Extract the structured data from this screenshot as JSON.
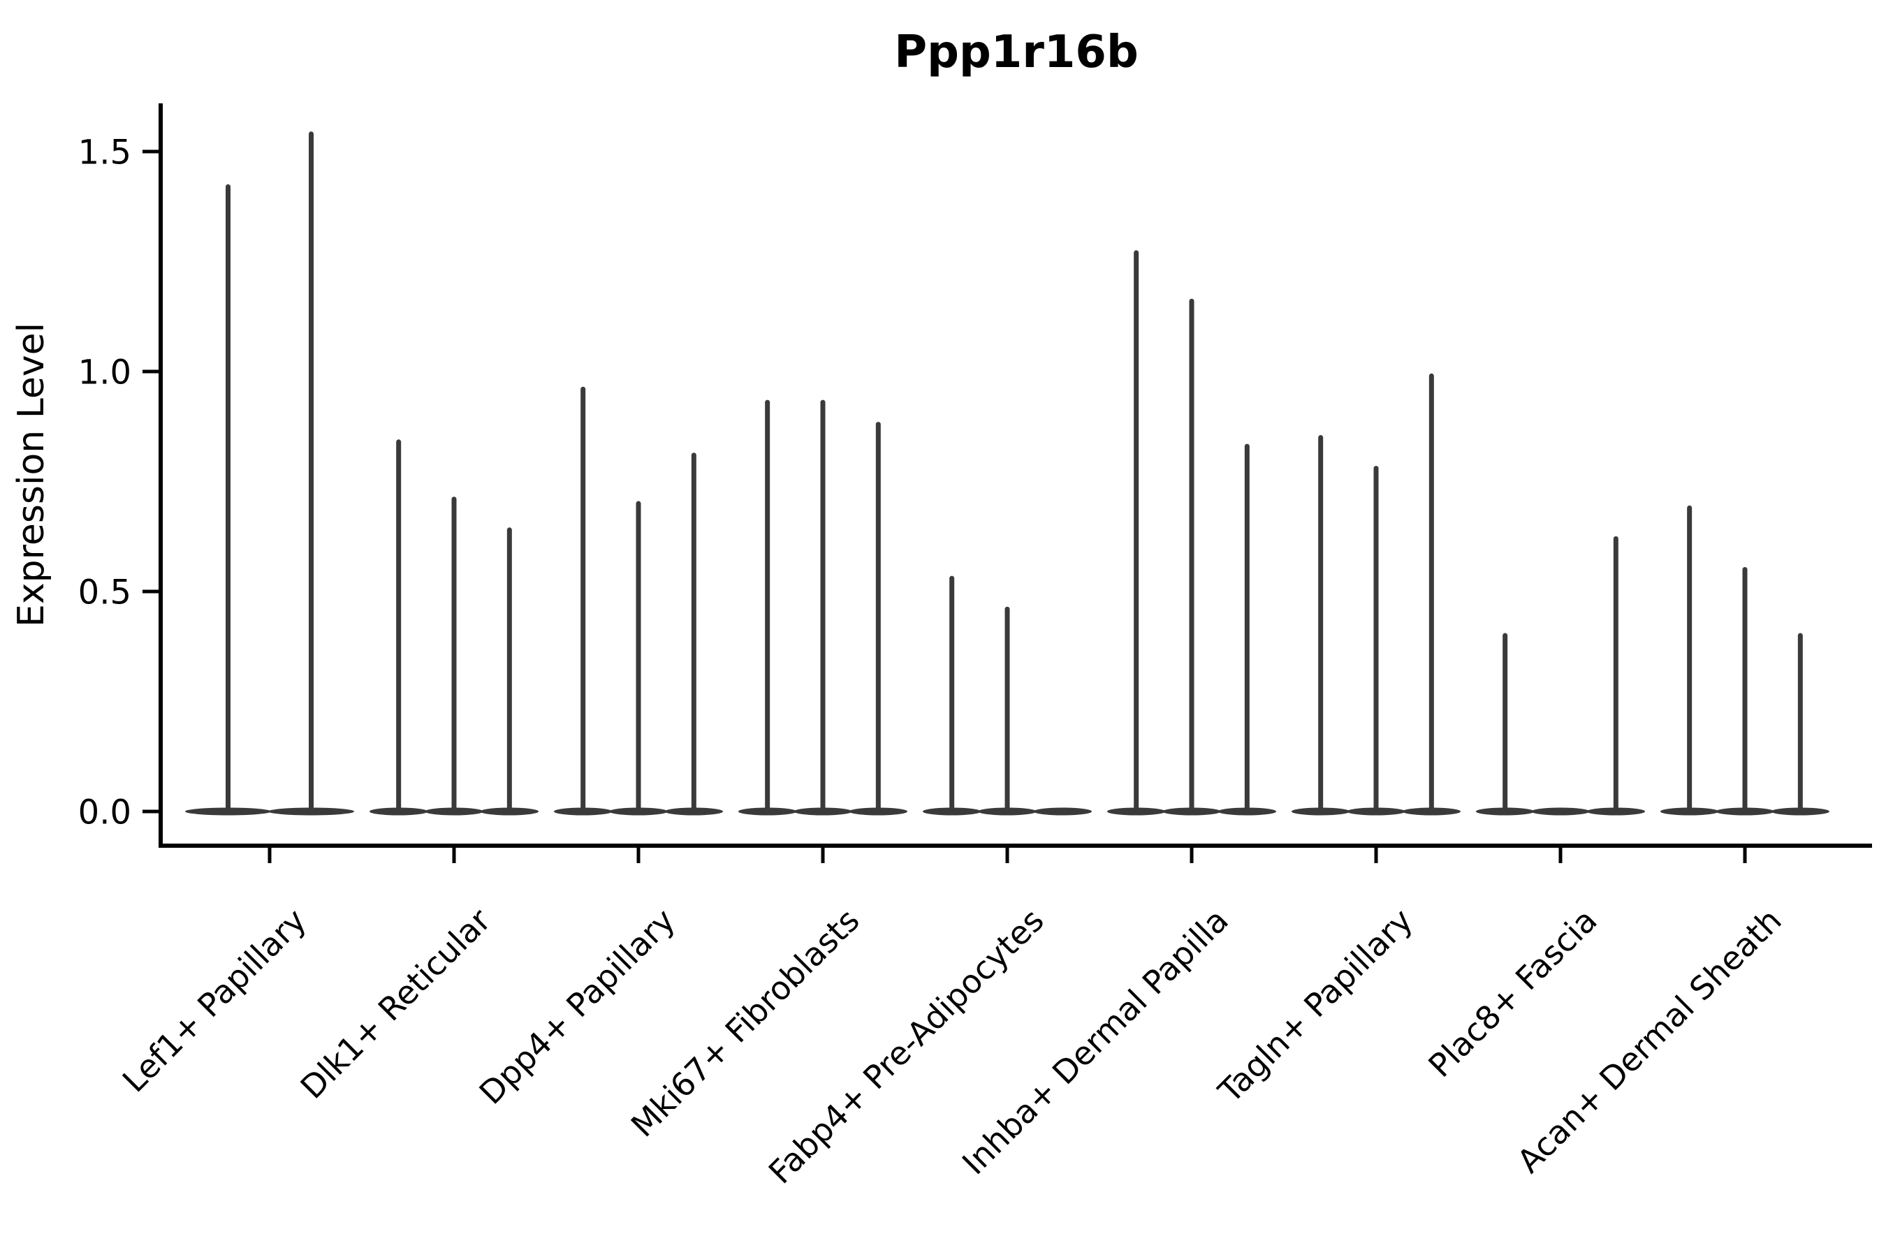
{
  "page": {
    "background": "#ffffff"
  },
  "chart_data": {
    "type": "violin",
    "title": "Ppp1r16b",
    "ylabel": "Expression Level",
    "xlabel": "",
    "grid": false,
    "legend": false,
    "violin_color": "#3a3a3a",
    "axis_color": "#000000",
    "yticks": [
      0.0,
      0.5,
      1.0,
      1.5
    ],
    "ylim": [
      -0.08,
      1.61
    ],
    "categories": [
      "Lef1+ Papillary",
      "Dlk1+ Reticular",
      "Dpp4+ Papillary",
      "Mki67+ Fibroblasts",
      "Fabp4+ Pre-Adipocytes",
      "Inhba+ Dermal Papilla",
      "Tagln+ Papillary",
      "Plac8+ Fascia",
      "Acan+ Dermal Sheath"
    ],
    "groups": [
      {
        "category": "Lef1+ Papillary",
        "violin_max_values": [
          1.42,
          1.54
        ]
      },
      {
        "category": "Dlk1+ Reticular",
        "violin_max_values": [
          0.84,
          0.71,
          0.64
        ]
      },
      {
        "category": "Dpp4+ Papillary",
        "violin_max_values": [
          0.96,
          0.7,
          0.81
        ]
      },
      {
        "category": "Mki67+ Fibroblasts",
        "violin_max_values": [
          0.93,
          0.93,
          0.88
        ]
      },
      {
        "category": "Fabp4+ Pre-Adipocytes",
        "violin_max_values": [
          0.53,
          0.46,
          0.0
        ]
      },
      {
        "category": "Inhba+ Dermal Papilla",
        "violin_max_values": [
          1.27,
          1.16,
          0.83
        ]
      },
      {
        "category": "Tagln+ Papillary",
        "violin_max_values": [
          0.85,
          0.78,
          0.99
        ]
      },
      {
        "category": "Plac8+ Fascia",
        "violin_max_values": [
          0.4,
          0.0,
          0.62
        ]
      },
      {
        "category": "Acan+ Dermal Sheath",
        "violin_max_values": [
          0.69,
          0.55,
          0.4
        ]
      }
    ]
  }
}
